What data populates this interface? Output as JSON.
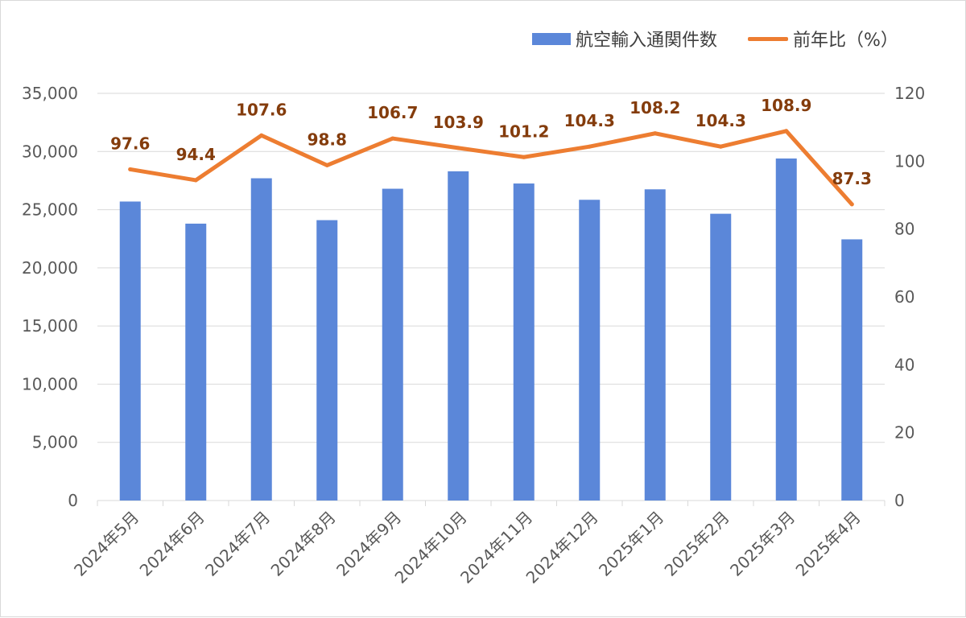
{
  "legend": {
    "bar_label": "航空輸入通関件数",
    "line_label": "前年比（%）"
  },
  "colors": {
    "bar": "#5b87d9",
    "line": "#ed7d31",
    "line_label": "#843c0c",
    "grid": "#d9d9d9",
    "axis_text": "#595959"
  },
  "chart_data": {
    "type": "bar",
    "categories": [
      "2024年5月",
      "2024年6月",
      "2024年7月",
      "2024年8月",
      "2024年9月",
      "2024年10月",
      "2024年11月",
      "2024年12月",
      "2025年1月",
      "2025年2月",
      "2025年3月",
      "2025年4月"
    ],
    "series": [
      {
        "name": "航空輸入通関件数",
        "type": "bar",
        "axis": "left",
        "values": [
          25700,
          23800,
          27700,
          24100,
          26800,
          28300,
          27250,
          25850,
          26750,
          24650,
          29400,
          22450
        ]
      },
      {
        "name": "前年比（%）",
        "type": "line",
        "axis": "right",
        "values": [
          97.6,
          94.4,
          107.6,
          98.8,
          106.7,
          103.9,
          101.2,
          104.3,
          108.2,
          104.3,
          108.9,
          87.3
        ],
        "data_labels": [
          "97.6",
          "94.4",
          "107.6",
          "98.8",
          "106.7",
          "103.9",
          "101.2",
          "104.3",
          "108.2",
          "104.3",
          "108.9",
          "87.3"
        ]
      }
    ],
    "left_axis": {
      "ylim": [
        0,
        35000
      ],
      "ticks": [
        0,
        5000,
        10000,
        15000,
        20000,
        25000,
        30000,
        35000
      ],
      "tick_labels": [
        "0",
        "5,000",
        "10,000",
        "15,000",
        "20,000",
        "25,000",
        "30,000",
        "35,000"
      ]
    },
    "right_axis": {
      "ylim": [
        0,
        120
      ],
      "ticks": [
        0,
        20,
        40,
        60,
        80,
        100,
        120
      ],
      "tick_labels": [
        "0",
        "20",
        "40",
        "60",
        "80",
        "100",
        "120"
      ]
    },
    "grid": true,
    "legend_position": "top-right",
    "title": "",
    "xlabel": "",
    "ylabel": ""
  }
}
